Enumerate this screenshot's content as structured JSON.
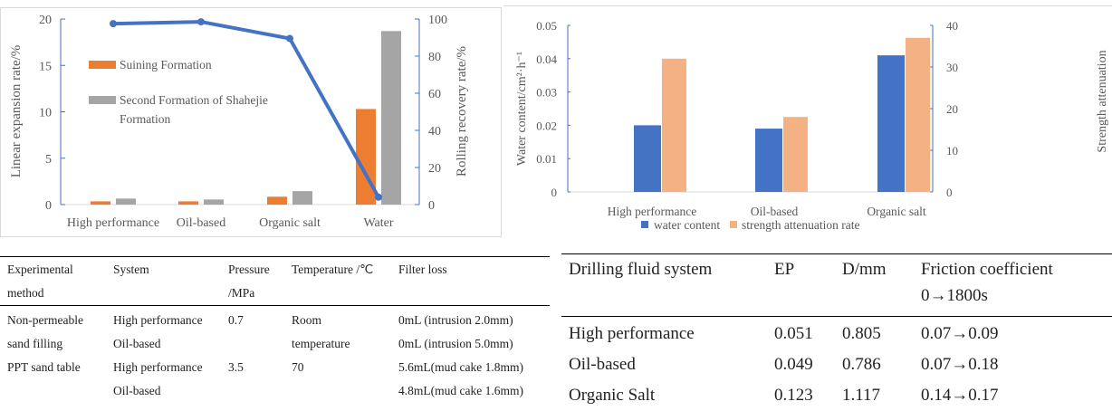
{
  "chart_data": [
    {
      "type": "bar+line",
      "categories": [
        "High performance",
        "Oil-based",
        "Organic salt",
        "Water"
      ],
      "series": [
        {
          "name": "Suining Formation",
          "type": "bar",
          "axis": "left",
          "color": "#ED7D31",
          "values": [
            0.35,
            0.35,
            0.85,
            10.3
          ]
        },
        {
          "name": "Second Formation of Shahejie Formation",
          "type": "bar",
          "axis": "left",
          "color": "#A5A5A5",
          "values": [
            0.65,
            0.55,
            1.45,
            18.7
          ]
        },
        {
          "type": "line",
          "axis": "right",
          "color": "#4472C4",
          "values": [
            97.5,
            98.5,
            89.5,
            4
          ]
        }
      ],
      "ylabel": "Linear expansion rate/%",
      "y2label": "Rolling recovery rate/%",
      "ylim": [
        0,
        20
      ],
      "yticks": [
        "0",
        "5",
        "10",
        "15",
        "20"
      ],
      "y2lim": [
        0,
        100
      ],
      "y2ticks": [
        "0",
        "20",
        "40",
        "60",
        "80",
        "100"
      ],
      "legend_lines": [
        "Suining Formation",
        "Second Formation of Shahejie",
        "Formation"
      ],
      "legend": "upper-left inside",
      "grid": false
    },
    {
      "type": "bar",
      "categories": [
        "High performance",
        "Oil-based",
        "Organic salt"
      ],
      "series": [
        {
          "name": "water content",
          "axis": "left",
          "color": "#4472C4",
          "values": [
            0.02,
            0.019,
            0.041
          ]
        },
        {
          "name": "strength attenuation rate",
          "axis": "right",
          "color": "#F4B183",
          "values": [
            32,
            18,
            37
          ]
        }
      ],
      "ylabel": "Water content/cm²·h⁻¹",
      "y2label": "Strength attenuation",
      "ylim": [
        0,
        0.05
      ],
      "yticks": [
        "0",
        "0.01",
        "0.02",
        "0.03",
        "0.04",
        "0.05"
      ],
      "y2lim": [
        0,
        40
      ],
      "y2ticks": [
        "0",
        "10",
        "20",
        "30",
        "40"
      ],
      "legend": "bottom",
      "grid": false
    }
  ],
  "table1": {
    "headers": [
      [
        "Experimental",
        "method"
      ],
      [
        "System"
      ],
      [
        "Pressure",
        "/MPa"
      ],
      [
        "Temperature /℃"
      ],
      [
        "Filter loss"
      ]
    ],
    "rows": [
      [
        "Non-permeable",
        "High performance",
        "0.7",
        "Room",
        "0mL (intrusion 2.0mm)"
      ],
      [
        "sand filling",
        "Oil-based",
        "",
        "temperature",
        "0mL (intrusion 5.0mm)"
      ],
      [
        "PPT sand table",
        "High performance",
        "3.5",
        "70",
        "5.6mL(mud cake 1.8mm)"
      ],
      [
        "",
        "Oil-based",
        "",
        "",
        "4.8mL(mud cake 1.6mm)"
      ]
    ]
  },
  "table2": {
    "headers": [
      "Drilling fluid system",
      "EP",
      "D/mm",
      "Friction coefficient"
    ],
    "subheader": "0→1800s",
    "rows": [
      [
        "High performance",
        "0.051",
        "0.805",
        "0.07→0.09"
      ],
      [
        "Oil-based",
        "0.049",
        "0.786",
        "0.07→0.18"
      ],
      [
        "Organic Salt",
        "0.123",
        "1.117",
        "0.14→0.17"
      ]
    ]
  }
}
